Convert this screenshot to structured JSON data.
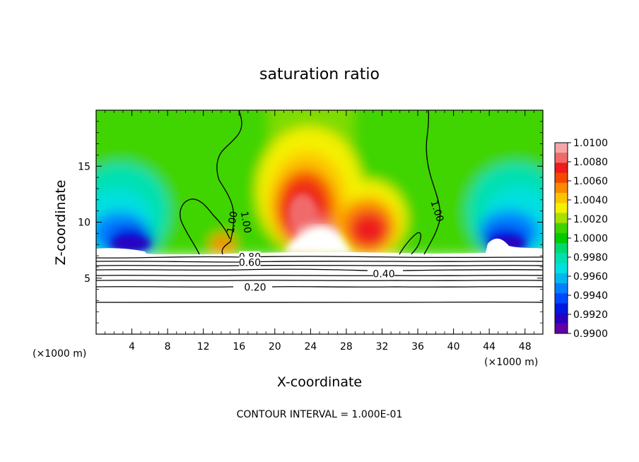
{
  "chart_data": {
    "type": "heatmap",
    "title": "saturation ratio",
    "xlabel": "X-coordinate",
    "ylabel": "Z-coordinate",
    "x_unit_left": "(×1000 m)",
    "x_unit_right": "(×1000 m)",
    "xlim": [
      0,
      50
    ],
    "ylim": [
      0,
      20
    ],
    "x_ticks": [
      4,
      8,
      12,
      16,
      20,
      24,
      28,
      32,
      36,
      40,
      44,
      48
    ],
    "y_ticks": [
      5,
      10,
      15
    ],
    "footer": "CONTOUR INTERVAL = 1.000E-01",
    "colorbar": {
      "range": [
        0.99,
        1.01
      ],
      "ticks": [
        "1.0100",
        "1.0080",
        "1.0060",
        "1.0040",
        "1.0020",
        "1.0000",
        "0.9980",
        "0.9960",
        "0.9940",
        "0.9920",
        "0.9900"
      ],
      "colors": [
        "#f4a6a6",
        "#f06a6a",
        "#ee1c1c",
        "#f44a00",
        "#fb8a00",
        "#fcc400",
        "#f5f000",
        "#a8e000",
        "#3fd400",
        "#00cc00",
        "#00d870",
        "#00e0b0",
        "#00e0e0",
        "#00b8f0",
        "#0080ff",
        "#0048ff",
        "#0018e0",
        "#2a00c0",
        "#6000a8"
      ]
    },
    "contour_labels": [
      {
        "text": "1.00",
        "x": 15.2,
        "z": 10.0,
        "rotate": -80
      },
      {
        "text": "1.00",
        "x": 16.8,
        "z": 10.0,
        "rotate": 80
      },
      {
        "text": "1.00",
        "x": 38.2,
        "z": 11.0,
        "rotate": 72
      },
      {
        "text": "0.80",
        "x": 17.2,
        "z": 6.9,
        "rotate": 0
      },
      {
        "text": "0.60",
        "x": 17.2,
        "z": 6.4,
        "rotate": 0
      },
      {
        "text": "0.40",
        "x": 32.2,
        "z": 5.4,
        "rotate": 0
      },
      {
        "text": "0.20",
        "x": 17.8,
        "z": 4.2,
        "rotate": 0
      }
    ]
  }
}
